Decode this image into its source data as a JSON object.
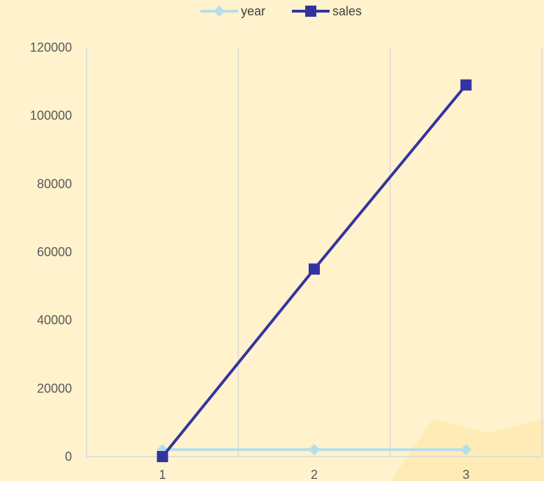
{
  "colors": {
    "background": "#fff2cc",
    "grid": "#d9d9d9",
    "year": "#b7dee8",
    "sales": "#3333a0",
    "watermark": "#ffe08a"
  },
  "chart_data": {
    "type": "line",
    "categories": [
      "1",
      "2",
      "3"
    ],
    "series": [
      {
        "name": "year",
        "values": [
          2016,
          2017,
          2018
        ],
        "marker": "diamond",
        "color": "#b7dee8"
      },
      {
        "name": "sales",
        "values": [
          0,
          55000,
          109000
        ],
        "marker": "square",
        "color": "#3333a0"
      }
    ],
    "y_ticks": [
      "0",
      "20000",
      "40000",
      "60000",
      "80000",
      "100000",
      "120000"
    ],
    "ylim": [
      0,
      120000
    ],
    "grid": "vertical",
    "legend": "top-center",
    "title": "",
    "xlabel": "",
    "ylabel": ""
  }
}
